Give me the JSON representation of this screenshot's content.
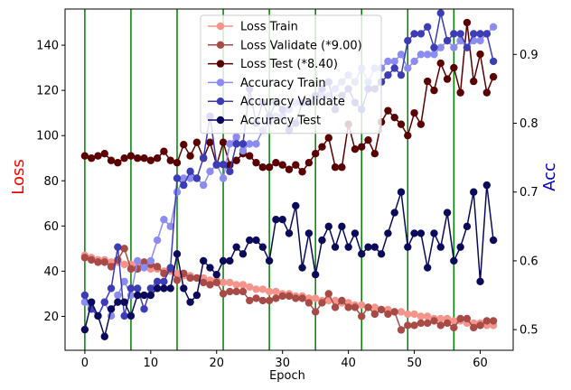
{
  "chart_data": {
    "type": "line",
    "xlabel": "Epoch",
    "ylabel_left": "Loss",
    "ylabel_right": "Acc",
    "ylabel_left_color": "#ff0000",
    "ylabel_right_color": "#0000cc",
    "xlim": [
      -3,
      65
    ],
    "ylim_left": [
      5,
      156
    ],
    "ylim_right": [
      0.47,
      0.966
    ],
    "x_ticks": [
      0,
      10,
      20,
      30,
      40,
      50,
      60
    ],
    "y_left_ticks": [
      20,
      40,
      60,
      80,
      100,
      120,
      140
    ],
    "y_right_ticks": [
      0.5,
      0.6,
      0.7,
      0.8,
      0.9
    ],
    "vlines": [
      0,
      7,
      14,
      21,
      28,
      35,
      42,
      49,
      56
    ],
    "vline_color": "#008000",
    "legend_position": "upper center",
    "series": [
      {
        "name": "Loss Train",
        "axis": "left",
        "color": "#f4948a",
        "values": [
          47,
          46,
          45,
          45,
          44,
          44,
          43,
          43,
          42,
          42,
          41,
          41,
          40,
          40,
          39,
          38,
          38,
          37,
          37,
          36,
          36,
          35,
          35,
          34,
          34,
          33,
          32,
          32,
          31,
          31,
          30,
          30,
          29,
          29,
          28,
          28,
          27,
          27,
          27,
          26,
          26,
          25,
          25,
          24,
          24,
          23,
          23,
          22,
          22,
          21,
          21,
          20,
          20,
          19,
          19,
          19,
          18,
          18,
          17,
          17,
          17,
          16,
          16
        ]
      },
      {
        "name": "Loss Validate (*9.00)",
        "axis": "left",
        "color": "#a84a45",
        "values": [
          46,
          45,
          44,
          44,
          42,
          45,
          50,
          41,
          41,
          44,
          43,
          42,
          39,
          41,
          36,
          39,
          37,
          37,
          35,
          34,
          35,
          30,
          31,
          31,
          31,
          27,
          28,
          27,
          27,
          28,
          29,
          29,
          28,
          28,
          26,
          22,
          26,
          30,
          24,
          27,
          24,
          24,
          20,
          24,
          21,
          23,
          21,
          22,
          14,
          16,
          16,
          17,
          17,
          18,
          16,
          17,
          15,
          19,
          19,
          15,
          16,
          18,
          18
        ]
      },
      {
        "name": "Loss Test (*8.40)",
        "axis": "left",
        "color": "#5a0000",
        "values": [
          91,
          90,
          91,
          92,
          89,
          88,
          90,
          91,
          90,
          90,
          89,
          90,
          93,
          89,
          88,
          96,
          91,
          97,
          90,
          97,
          87,
          97,
          87,
          89,
          92,
          91,
          88,
          86,
          86,
          88,
          87,
          85,
          87,
          84,
          88,
          92,
          95,
          99,
          86,
          86,
          105,
          94,
          95,
          98,
          92,
          106,
          111,
          108,
          105,
          100,
          110,
          105,
          124,
          120,
          132,
          125,
          130,
          119,
          150,
          124,
          136,
          119,
          126
        ]
      },
      {
        "name": "Accuracy Train",
        "axis": "right",
        "color": "#8c8cf0",
        "values": [
          0.54,
          0.53,
          0.52,
          0.54,
          0.52,
          0.55,
          0.57,
          0.55,
          0.6,
          0.59,
          0.6,
          0.63,
          0.66,
          0.65,
          0.7,
          0.72,
          0.72,
          0.72,
          0.71,
          0.73,
          0.74,
          0.72,
          0.77,
          0.78,
          0.76,
          0.77,
          0.77,
          0.79,
          0.8,
          0.81,
          0.81,
          0.82,
          0.83,
          0.83,
          0.83,
          0.84,
          0.84,
          0.84,
          0.85,
          0.86,
          0.87,
          0.86,
          0.88,
          0.86,
          0.88,
          0.88,
          0.89,
          0.89,
          0.9,
          0.88,
          0.89,
          0.9,
          0.9,
          0.9,
          0.91,
          0.92,
          0.91,
          0.92,
          0.91,
          0.92,
          0.92,
          0.93,
          0.94
        ]
      },
      {
        "name": "Accuracy Validate",
        "axis": "right",
        "color": "#3c3cb4",
        "values": [
          0.55,
          0.53,
          0.52,
          0.54,
          0.56,
          0.62,
          0.52,
          0.56,
          0.56,
          0.53,
          0.56,
          0.57,
          0.57,
          0.59,
          0.72,
          0.71,
          0.73,
          0.72,
          0.75,
          0.81,
          0.74,
          0.74,
          0.73,
          0.77,
          0.77,
          0.85,
          0.8,
          0.83,
          0.81,
          0.83,
          0.82,
          0.79,
          0.8,
          0.83,
          0.83,
          0.84,
          0.85,
          0.86,
          0.82,
          0.84,
          0.85,
          0.83,
          0.82,
          0.85,
          0.85,
          0.86,
          0.87,
          0.88,
          0.87,
          0.92,
          0.93,
          0.93,
          0.94,
          0.91,
          0.96,
          0.92,
          0.93,
          0.93,
          0.91,
          0.93,
          0.93,
          0.93,
          0.89
        ]
      },
      {
        "name": "Accuracy Test",
        "axis": "right",
        "color": "#0a0a5a",
        "values": [
          0.5,
          0.54,
          0.52,
          0.49,
          0.53,
          0.54,
          0.54,
          0.52,
          0.55,
          0.55,
          0.55,
          0.56,
          0.56,
          0.56,
          0.61,
          0.56,
          0.54,
          0.55,
          0.6,
          0.59,
          0.58,
          0.6,
          0.6,
          0.62,
          0.61,
          0.63,
          0.63,
          0.62,
          0.6,
          0.66,
          0.66,
          0.64,
          0.68,
          0.59,
          0.64,
          0.58,
          0.63,
          0.65,
          0.62,
          0.65,
          0.62,
          0.64,
          0.61,
          0.62,
          0.62,
          0.61,
          0.64,
          0.67,
          0.7,
          0.62,
          0.64,
          0.64,
          0.59,
          0.64,
          0.62,
          0.67,
          0.6,
          0.62,
          0.65,
          0.7,
          0.57,
          0.71,
          0.63
        ]
      }
    ]
  }
}
